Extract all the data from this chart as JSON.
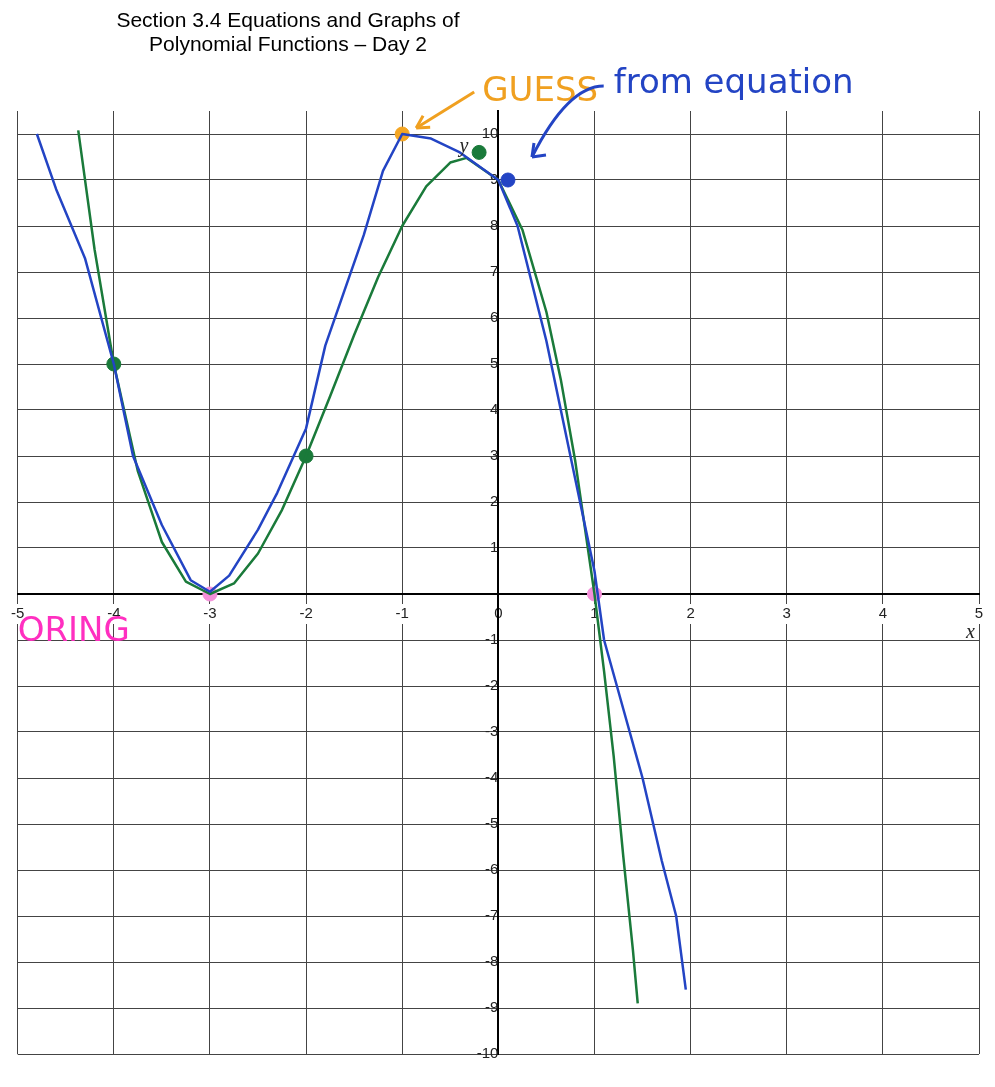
{
  "chart_data": {
    "type": "line",
    "title": "Section 3.4 Equations and Graphs of Polynomial Functions – Day 2",
    "xlabel": "x",
    "ylabel": "y",
    "xlim": [
      -5,
      5
    ],
    "ylim": [
      -10,
      10.5
    ],
    "xticks": [
      -5,
      -4,
      -3,
      -2,
      -1,
      0,
      1,
      2,
      3,
      4,
      5
    ],
    "yticks": [
      -10,
      -9,
      -8,
      -7,
      -6,
      -5,
      -4,
      -3,
      -2,
      -1,
      {
        "value": 0,
        "label": null
      },
      1,
      2,
      3,
      4,
      5,
      6,
      7,
      8,
      9,
      10
    ],
    "grid": true,
    "legend": false,
    "marker": "none",
    "line_style": "solid",
    "series": [
      {
        "color": "#2344c4",
        "x": [
          -4.8,
          -4.6,
          -4.3,
          -4,
          -3.8,
          -3.5,
          -3.2,
          -3,
          -2.8,
          -2.5,
          -2.3,
          -2,
          -1.8,
          -1.6,
          -1.4,
          -1.2,
          -1,
          -0.7,
          -0.4,
          -0.2,
          0,
          0.2,
          0.5,
          0.8,
          1,
          1.1,
          1.3,
          1.5,
          1.7,
          1.85,
          1.95
        ],
        "values": [
          10,
          8.8,
          7.3,
          5,
          3,
          1.5,
          0.3,
          0.05,
          0.4,
          1.4,
          2.2,
          3.6,
          5.4,
          6.6,
          7.8,
          9.2,
          10,
          9.9,
          9.6,
          9.3,
          9,
          8,
          5.5,
          2.5,
          0.5,
          -1,
          -2.5,
          -4,
          -5.8,
          -7,
          -8.6
        ]
      },
      {
        "color": "#1a7a3a",
        "x": [
          -4.37,
          -4.2,
          -4,
          -3.75,
          -3.5,
          -3.25,
          -3,
          -2.75,
          -2.5,
          -2.25,
          -2,
          -1.75,
          -1.5,
          -1.25,
          -1,
          -0.75,
          -0.5,
          -0.33,
          0,
          0.25,
          0.5,
          0.65,
          0.8,
          1,
          1.1,
          1.2,
          1.3,
          1.4,
          1.45
        ],
        "values": [
          10.08,
          7.49,
          5,
          2.67,
          1.13,
          0.27,
          0,
          0.23,
          0.88,
          1.83,
          3,
          4.3,
          5.63,
          6.89,
          8,
          8.86,
          9.38,
          9.48,
          9,
          7.92,
          6.13,
          4.66,
          2.89,
          0,
          -1.68,
          -3.53,
          -5.71,
          -7.74,
          -8.9
        ]
      },
      {
        "type": "scatter",
        "marker": "circle",
        "x": [
          -4,
          -2,
          -0.2,
          0.1,
          -1,
          -3,
          1
        ],
        "values": [
          5,
          3,
          9.6,
          9,
          10,
          0,
          0
        ],
        "colors": [
          "#1a7a3a",
          "#1a7a3a",
          "#1a7a3a",
          "#2344c4",
          "#f5a623",
          "#f48fd9",
          "#f48fd9"
        ]
      }
    ],
    "annotations": [
      {
        "text": "GUESS",
        "x": -1,
        "y": 10
      },
      "from equation",
      "ORING"
    ]
  }
}
